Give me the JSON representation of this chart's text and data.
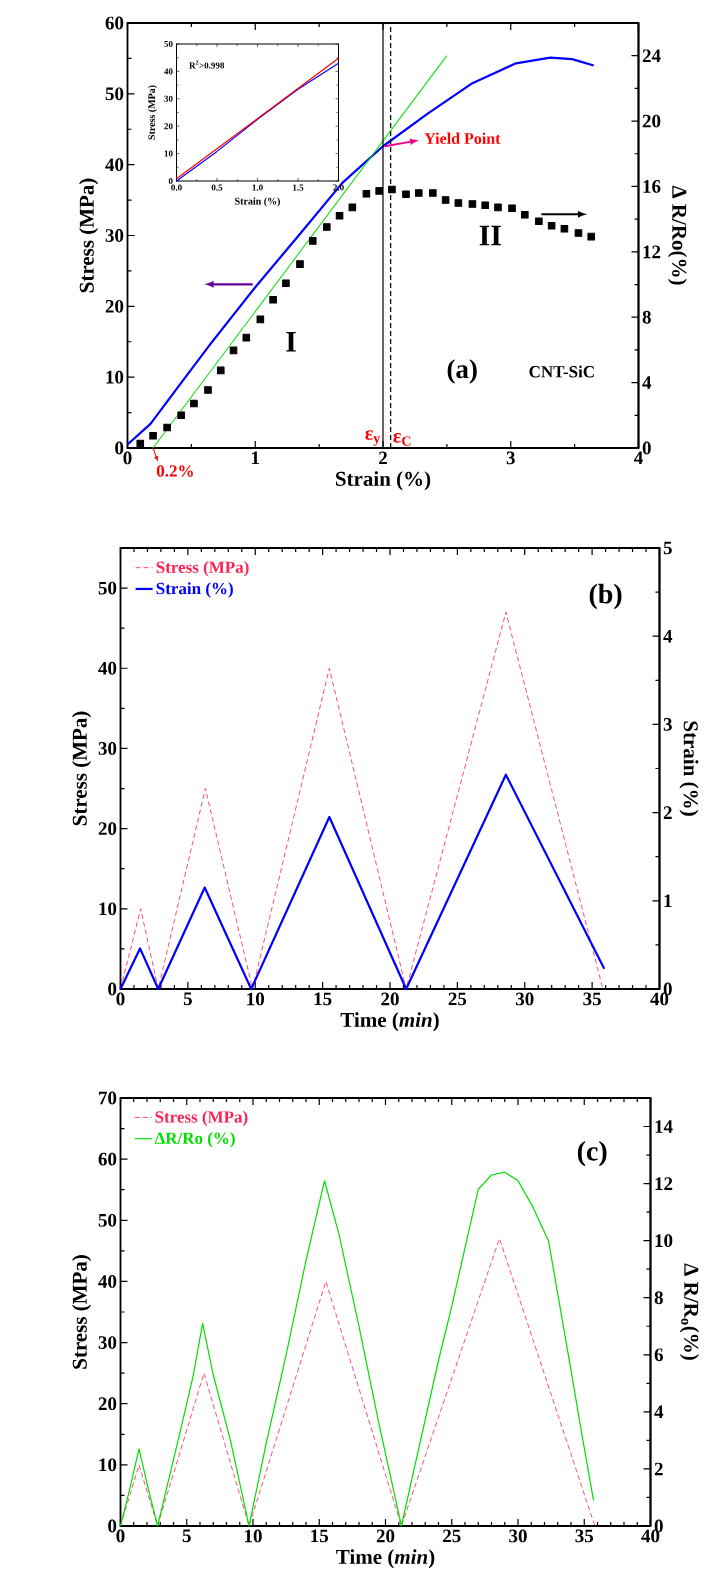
{
  "chart_data": [
    {
      "type": "line",
      "xlabel": "Strain (%)",
      "ylabel": "Stress (MPa)",
      "y2label": "Δ R/Ro(%)",
      "xlim": [
        0,
        4
      ],
      "xticks": [
        0,
        1,
        2,
        3,
        4
      ],
      "ylim": [
        0,
        60
      ],
      "yticks": [
        0,
        10,
        20,
        30,
        40,
        50,
        60
      ],
      "y2lim": [
        0,
        26
      ],
      "y2ticks": [
        0,
        4,
        8,
        12,
        16,
        20,
        24
      ],
      "series": [
        {
          "color": "#0000ff",
          "x": [
            0,
            0.18,
            0.42,
            0.65,
            1.0,
            1.34,
            1.68,
            2.0,
            2.35,
            2.7,
            3.04,
            3.31,
            3.48,
            3.65
          ],
          "values": [
            0.5,
            3.4,
            9.2,
            14.7,
            22.7,
            30,
            37.4,
            42.6,
            47.2,
            51.5,
            54.3,
            55.1,
            54.9,
            54
          ]
        },
        {
          "color": "#00e000",
          "x": [
            0.2,
            2.5
          ],
          "values": [
            0,
            55.4
          ]
        },
        {
          "type": "scatter",
          "axis": "y2",
          "marker": "square",
          "color": "#000000",
          "x": [
            0.1,
            0.2,
            0.31,
            0.42,
            0.52,
            0.63,
            0.73,
            0.83,
            0.93,
            1.04,
            1.14,
            1.24,
            1.35,
            1.45,
            1.56,
            1.66,
            1.76,
            1.87,
            1.97,
            2.07,
            2.18,
            2.28,
            2.39,
            2.49,
            2.59,
            2.7,
            2.8,
            2.9,
            3.01,
            3.11,
            3.22,
            3.32,
            3.42,
            3.53,
            3.63
          ],
          "values": [
            0.27,
            0.75,
            1.25,
            2.0,
            2.72,
            3.55,
            4.75,
            5.97,
            6.75,
            7.87,
            9.07,
            10.08,
            11.25,
            12.67,
            13.52,
            14.21,
            14.72,
            15.55,
            15.73,
            15.81,
            15.52,
            15.6,
            15.6,
            15.17,
            14.99,
            14.93,
            14.85,
            14.72,
            14.67,
            14.27,
            13.87,
            13.6,
            13.41,
            13.15,
            12.93
          ]
        }
      ],
      "ref_lines": [
        {
          "axis": "x",
          "value": 2.0,
          "label": "ε$_{y}$",
          "color": "#000000",
          "line_style": "solid"
        },
        {
          "axis": "x",
          "value": 2.06,
          "label": "ε$_{C}$",
          "color": "#000000",
          "line_style": "dashed"
        }
      ],
      "annotations": [
        {
          "text": "Yield Point",
          "x": 2.0,
          "y": 42.6
        },
        {
          "text": "0.2%",
          "x": 0.2,
          "y": 0
        },
        "I",
        "II",
        "(a)",
        "CNT-SiC"
      ]
    },
    {
      "type": "line",
      "xlabel": "Strain (%)",
      "ylabel": "Stress (MPa)",
      "xlim": [
        0,
        2
      ],
      "xticks": [
        {
          "value": 0,
          "label": "0.0"
        },
        {
          "value": 0.5,
          "label": "0.5"
        },
        {
          "value": 1,
          "label": "1.0"
        },
        {
          "value": 1.5,
          "label": "1.5"
        },
        {
          "value": 2,
          "label": "2.0"
        }
      ],
      "ylim": [
        0,
        50
      ],
      "yticks": [
        0,
        10,
        20,
        30,
        40,
        50
      ],
      "series": [
        {
          "color": "#0000ff",
          "x": [
            0,
            0.5,
            1.0,
            1.5,
            2.0
          ],
          "values": [
            0,
            10.8,
            22.5,
            33.5,
            43
          ]
        },
        {
          "color": "#ff0000",
          "x": [
            0,
            2.0
          ],
          "values": [
            0.8,
            44.8
          ]
        }
      ],
      "annotations": [
        "R$^{2}$>0.998"
      ]
    },
    {
      "type": "line",
      "xlabel": "Time (*min*)",
      "ylabel": "Stress (MPa)",
      "y2label": "Strain (%)",
      "xlim": [
        0,
        40
      ],
      "xticks": [
        0,
        5,
        10,
        15,
        20,
        25,
        30,
        35,
        40
      ],
      "ylim": [
        0,
        55
      ],
      "yticks": [
        0,
        10,
        20,
        30,
        40,
        50
      ],
      "y2lim": [
        0,
        5
      ],
      "y2ticks": [
        0,
        1,
        2,
        3,
        4,
        5
      ],
      "legend": "top left",
      "series": [
        {
          "name": "Stress (MPa)",
          "color": "#ff2255",
          "line_style": "dashed",
          "x": [
            0,
            1.5,
            2.8,
            6.3,
            9.8,
            15.5,
            21.2,
            28.6,
            35.8
          ],
          "values": [
            0,
            10,
            0,
            25,
            0,
            40,
            0,
            47,
            0
          ]
        },
        {
          "name": "Strain (%)",
          "color": "#0000ff",
          "axis": "y2",
          "x": [
            0,
            1.45,
            2.8,
            6.25,
            9.7,
            15.5,
            21.2,
            28.6,
            35.9
          ],
          "values": [
            0,
            0.46,
            0,
            1.15,
            0,
            1.95,
            0,
            2.43,
            0.23
          ]
        }
      ],
      "annotations": [
        "(b)"
      ]
    },
    {
      "type": "line",
      "xlabel": "Time (*min*)",
      "ylabel": "Stress (MPa)",
      "y2label": "Δ R/R$_{o}$(%)",
      "xlim": [
        0,
        40
      ],
      "xticks": [
        0,
        5,
        10,
        15,
        20,
        25,
        30,
        35,
        40
      ],
      "ylim": [
        0,
        70
      ],
      "yticks": [
        0,
        10,
        20,
        30,
        40,
        50,
        60,
        70
      ],
      "y2lim": [
        0,
        15
      ],
      "y2ticks": [
        0,
        2,
        4,
        6,
        8,
        10,
        12,
        14
      ],
      "legend": "top left",
      "series": [
        {
          "name": "Stress (MPa)",
          "color": "#ff2255",
          "line_style": "dashed",
          "x": [
            0,
            1.4,
            2.8,
            6.3,
            9.7,
            15.5,
            21.2,
            28.6,
            35.8
          ],
          "values": [
            0,
            10,
            0,
            25,
            0,
            40,
            0,
            47,
            0
          ]
        },
        {
          "name": "ΔR/Ro (%)",
          "color": "#00e000",
          "axis": "y2",
          "x": [
            0,
            0.7,
            1.4,
            2.1,
            2.8,
            4.5,
            5.5,
            6.2,
            7,
            8.3,
            9.7,
            11,
            12.5,
            14,
            15.4,
            16.5,
            18,
            19.5,
            21.2,
            22.5,
            24,
            25,
            27,
            28,
            29,
            30,
            31.1,
            32.3,
            33.8,
            34.9,
            35.7
          ],
          "values": [
            0,
            1.3,
            2.7,
            1.3,
            0,
            3.3,
            5.3,
            7.1,
            5.3,
            3.0,
            0,
            2.9,
            6.0,
            9.3,
            12.1,
            10.2,
            7.0,
            3.6,
            0,
            2.7,
            5.8,
            7.7,
            11.8,
            12.3,
            12.4,
            12.1,
            11.2,
            10.0,
            6.0,
            3.0,
            0.9
          ]
        }
      ],
      "annotations": [
        "(c)"
      ]
    }
  ]
}
